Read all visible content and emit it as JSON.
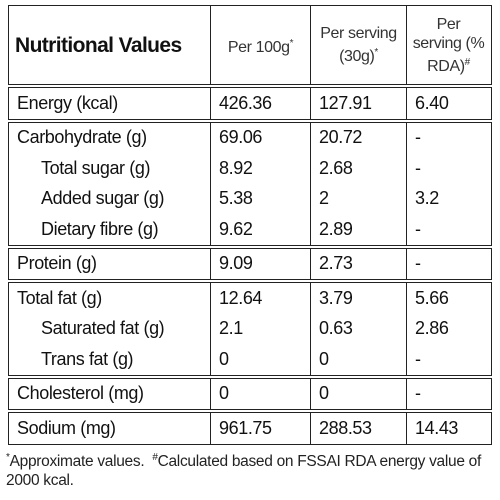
{
  "table": {
    "header": [
      {
        "text": "Nutritional Values"
      },
      {
        "text": "Per 100g",
        "sup": "*"
      },
      {
        "text": "Per serving (30g)",
        "sup": "*"
      },
      {
        "text": "Per serving (% RDA)",
        "sup": "#"
      }
    ],
    "groups": [
      {
        "rows": [
          {
            "label": "Energy (kcal)",
            "values": [
              "426.36",
              "127.91",
              "6.40"
            ]
          }
        ]
      },
      {
        "rows": [
          {
            "label": "Carbohydrate (g)",
            "values": [
              "69.06",
              "20.72",
              "-"
            ]
          },
          {
            "label": "Total sugar (g)",
            "values": [
              "8.92",
              "2.68",
              "-"
            ],
            "indent": true
          },
          {
            "label": "Added sugar (g)",
            "values": [
              "5.38",
              "2",
              "3.2"
            ],
            "indent": true
          },
          {
            "label": "Dietary fibre (g)",
            "values": [
              "9.62",
              "2.89",
              "-"
            ],
            "indent": true
          }
        ]
      },
      {
        "rows": [
          {
            "label": "Protein (g)",
            "values": [
              "9.09",
              "2.73",
              "-"
            ]
          }
        ]
      },
      {
        "rows": [
          {
            "label": "Total fat (g)",
            "values": [
              "12.64",
              "3.79",
              "5.66"
            ]
          },
          {
            "label": "Saturated fat (g)",
            "values": [
              "2.1",
              "0.63",
              "2.86"
            ],
            "indent": true
          },
          {
            "label": "Trans fat (g)",
            "values": [
              "0",
              "0",
              "-"
            ],
            "indent": true
          }
        ]
      },
      {
        "rows": [
          {
            "label": "Cholesterol (mg)",
            "values": [
              "0",
              "0",
              "-"
            ]
          }
        ]
      },
      {
        "rows": [
          {
            "label": "Sodium (mg)",
            "values": [
              "961.75",
              "288.53",
              "14.43"
            ]
          }
        ]
      }
    ]
  },
  "footnotes": [
    {
      "sup": "*",
      "text": "Approximate values."
    },
    {
      "sup": "#",
      "text": "Calculated based on FSSAI RDA energy value of 2000 kcal."
    }
  ]
}
